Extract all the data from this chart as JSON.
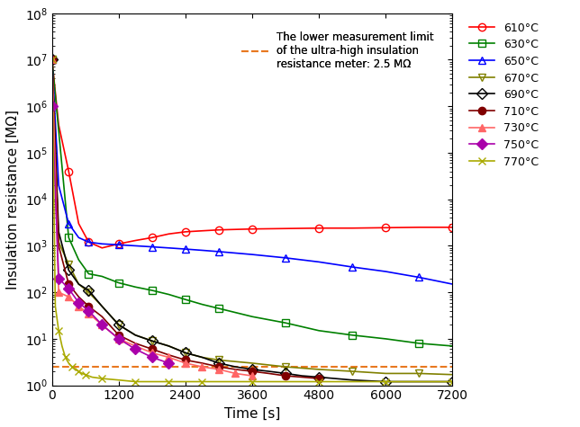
{
  "ylabel": "Insulation resistance [MΩ]",
  "xlabel": "Time [s]",
  "ylim_log": [
    1.0,
    100000000.0
  ],
  "xlim": [
    0,
    7200
  ],
  "xticks": [
    0,
    1200,
    2400,
    3600,
    4800,
    6000,
    7200
  ],
  "lower_limit": 2.5,
  "lower_limit_label": "The lower measurement limit\nof the ultra-high insulation\nresistance meter: 2.5 MΩ",
  "lower_limit_color": "#e87820",
  "series": [
    {
      "label": "610°C",
      "color": "#ff0000",
      "marker": "o",
      "mfc": "none",
      "mec": "#ff0000",
      "x": [
        0,
        120,
        300,
        480,
        660,
        900,
        1200,
        1500,
        1800,
        2100,
        2400,
        2700,
        3000,
        3300,
        3600,
        4200,
        4800,
        5400,
        6000,
        6600,
        7200
      ],
      "y": [
        10000000.0,
        400000.0,
        40000.0,
        3000.0,
        1200.0,
        900.0,
        1100.0,
        1300.0,
        1500.0,
        1800.0,
        2000.0,
        2100.0,
        2200.0,
        2250.0,
        2300.0,
        2350.0,
        2400.0,
        2400.0,
        2450.0,
        2500.0,
        2500.0
      ]
    },
    {
      "label": "630°C",
      "color": "#008000",
      "marker": "s",
      "mfc": "none",
      "mec": "#008000",
      "x": [
        0,
        120,
        300,
        480,
        660,
        900,
        1200,
        1500,
        1800,
        2100,
        2400,
        2700,
        3000,
        3600,
        4200,
        4800,
        5400,
        6000,
        6600,
        7200
      ],
      "y": [
        10000000.0,
        300000.0,
        1500.0,
        500.0,
        250.0,
        220.0,
        160.0,
        130.0,
        110.0,
        90.0,
        70.0,
        55.0,
        45.0,
        30.0,
        22.0,
        15.0,
        12.0,
        10.0,
        8,
        7
      ]
    },
    {
      "label": "650°C",
      "color": "#0000ff",
      "marker": "^",
      "mfc": "none",
      "mec": "#0000ff",
      "x": [
        0,
        120,
        300,
        480,
        660,
        900,
        1200,
        1500,
        1800,
        2100,
        2400,
        2700,
        3000,
        3600,
        4200,
        4800,
        5400,
        6000,
        6600,
        7200
      ],
      "y": [
        10000000.0,
        20000.0,
        3000.0,
        1500.0,
        1200.0,
        1100.0,
        1050.0,
        1000.0,
        950.0,
        900.0,
        850.0,
        800.0,
        750.0,
        650.0,
        550.0,
        450.0,
        350.0,
        280.0,
        210.0,
        150.0
      ]
    },
    {
      "label": "670°C",
      "color": "#808000",
      "marker": "v",
      "mfc": "none",
      "mec": "#808000",
      "x": [
        0,
        120,
        300,
        480,
        660,
        900,
        1200,
        1500,
        1800,
        2100,
        2400,
        2700,
        3000,
        3600,
        4200,
        4800,
        5400,
        6000,
        6600,
        7200
      ],
      "y": [
        10000000.0,
        1200.0,
        400.0,
        150.0,
        100.0,
        50.0,
        20.0,
        12.0,
        9,
        7,
        5,
        4,
        3.5,
        3,
        2.5,
        2.2,
        2.0,
        1.8,
        1.8,
        1.7
      ]
    },
    {
      "label": "690°C",
      "color": "#000000",
      "marker": "D",
      "mfc": "none",
      "mec": "#000000",
      "x": [
        0,
        120,
        300,
        480,
        660,
        900,
        1200,
        1500,
        1800,
        2100,
        2400,
        2700,
        3000,
        3300,
        3600,
        3900,
        4200,
        4500,
        4800,
        5400,
        6000,
        6600,
        7200
      ],
      "y": [
        10000000.0,
        2000.0,
        300.0,
        150.0,
        110.0,
        50.0,
        20.0,
        12.0,
        9,
        7,
        5,
        4,
        3,
        2.5,
        2.2,
        2.0,
        1.8,
        1.6,
        1.5,
        1.3,
        1.2,
        1.2,
        1.2
      ]
    },
    {
      "label": "710°C",
      "color": "#800000",
      "marker": "o",
      "mfc": "#800000",
      "mec": "#800000",
      "x": [
        0,
        120,
        300,
        480,
        660,
        900,
        1200,
        1500,
        1800,
        2100,
        2400,
        2700,
        3000,
        3300,
        3600,
        3900,
        4200,
        4500,
        4800
      ],
      "y": [
        10000000.0,
        1000.0,
        150.0,
        80.0,
        50.0,
        30.0,
        12.0,
        8,
        6,
        4.5,
        3.5,
        3.0,
        2.5,
        2.2,
        2.0,
        1.8,
        1.6,
        1.5,
        1.4
      ]
    },
    {
      "label": "730°C",
      "color": "#ff6666",
      "marker": "^",
      "mfc": "#ff6666",
      "mec": "#ff6666",
      "x": [
        0,
        120,
        300,
        480,
        660,
        900,
        1200,
        1500,
        1800,
        2100,
        2400,
        2700,
        3000,
        3300,
        3600
      ],
      "y": [
        10000000.0,
        100.0,
        80.0,
        50.0,
        35.0,
        20.0,
        10.0,
        7,
        5,
        4,
        3,
        2.5,
        2.2,
        1.8,
        1.6
      ]
    },
    {
      "label": "750°C",
      "color": "#aa00aa",
      "marker": "D",
      "mfc": "#aa00aa",
      "mec": "#aa00aa",
      "x": [
        0,
        120,
        300,
        480,
        660,
        900,
        1200,
        1500,
        1800,
        2100
      ],
      "y": [
        1000000.0,
        200.0,
        120.0,
        60.0,
        40.0,
        20.0,
        10.0,
        6,
        4,
        3
      ]
    },
    {
      "label": "770°C",
      "color": "#aaaa00",
      "marker": "x",
      "mfc": "#aaaa00",
      "mec": "#aaaa00",
      "x": [
        0,
        60,
        120,
        180,
        240,
        300,
        360,
        420,
        480,
        540,
        600,
        720,
        900,
        1200,
        1500,
        1800,
        2100,
        2400,
        2700,
        3000,
        3600,
        4200,
        4800,
        5400,
        6000,
        6600,
        7200
      ],
      "y": [
        10000000.0,
        50.0,
        15.0,
        7,
        4,
        3,
        2.5,
        2.2,
        2.0,
        1.8,
        1.7,
        1.5,
        1.4,
        1.3,
        1.2,
        1.2,
        1.2,
        1.2,
        1.2,
        1.2,
        1.2,
        1.2,
        1.2,
        1.2,
        1.2,
        1.2,
        1.2
      ]
    }
  ]
}
